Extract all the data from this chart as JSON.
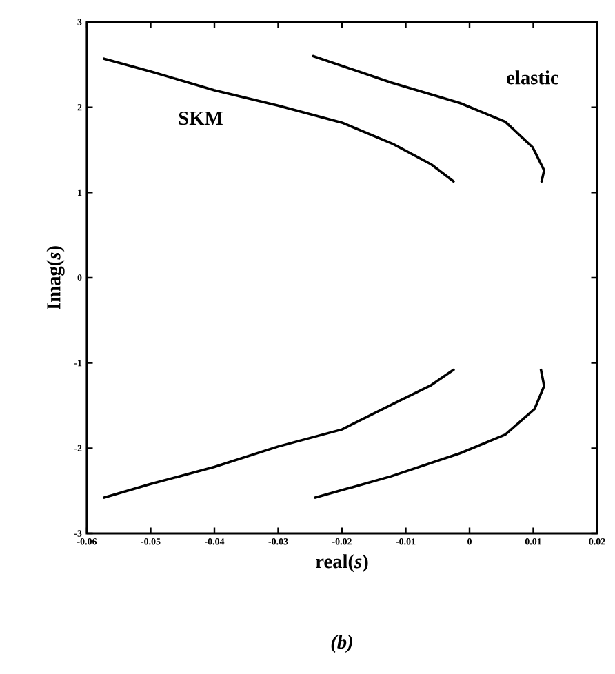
{
  "chart_data": {
    "type": "line",
    "xlabel": "real(*s*)",
    "ylabel": "Imag(*s*)",
    "xlim": [
      -0.06,
      0.02
    ],
    "ylim": [
      -3,
      3
    ],
    "xticks": [
      -0.06,
      -0.05,
      -0.04,
      -0.03,
      -0.02,
      -0.01,
      0,
      0.01,
      0.02
    ],
    "yticks": [
      -3,
      -2,
      -1,
      0,
      1,
      2,
      3
    ],
    "grid": false,
    "legend": false,
    "marker": "none",
    "line_style": "solid",
    "annotations": [
      "(b)"
    ],
    "series": [
      {
        "name": "SKM",
        "color": "#000000",
        "x": [
          -0.0573,
          -0.05,
          -0.04,
          -0.03,
          -0.02,
          -0.012,
          -0.006,
          -0.0025,
          null,
          -0.0573,
          -0.05,
          -0.04,
          -0.03,
          -0.02,
          -0.012,
          -0.006,
          -0.0025
        ],
        "values": [
          2.57,
          2.42,
          2.2,
          2.02,
          1.82,
          1.57,
          1.33,
          1.13,
          null,
          -2.58,
          -2.42,
          -2.22,
          -1.98,
          -1.78,
          -1.48,
          -1.26,
          -1.08
        ]
      },
      {
        "name": "elastic",
        "color": "#000000",
        "x": [
          -0.0245,
          -0.0123,
          -0.0015,
          0.0056,
          0.0099,
          0.0117,
          0.0113,
          null,
          0.0112,
          0.0117,
          0.0102,
          0.0056,
          -0.0015,
          -0.0123,
          -0.0242
        ],
        "values": [
          2.6,
          2.29,
          2.05,
          1.83,
          1.53,
          1.26,
          1.13,
          null,
          -1.08,
          -1.27,
          -1.54,
          -1.84,
          -2.06,
          -2.33,
          -2.58
        ]
      }
    ]
  }
}
